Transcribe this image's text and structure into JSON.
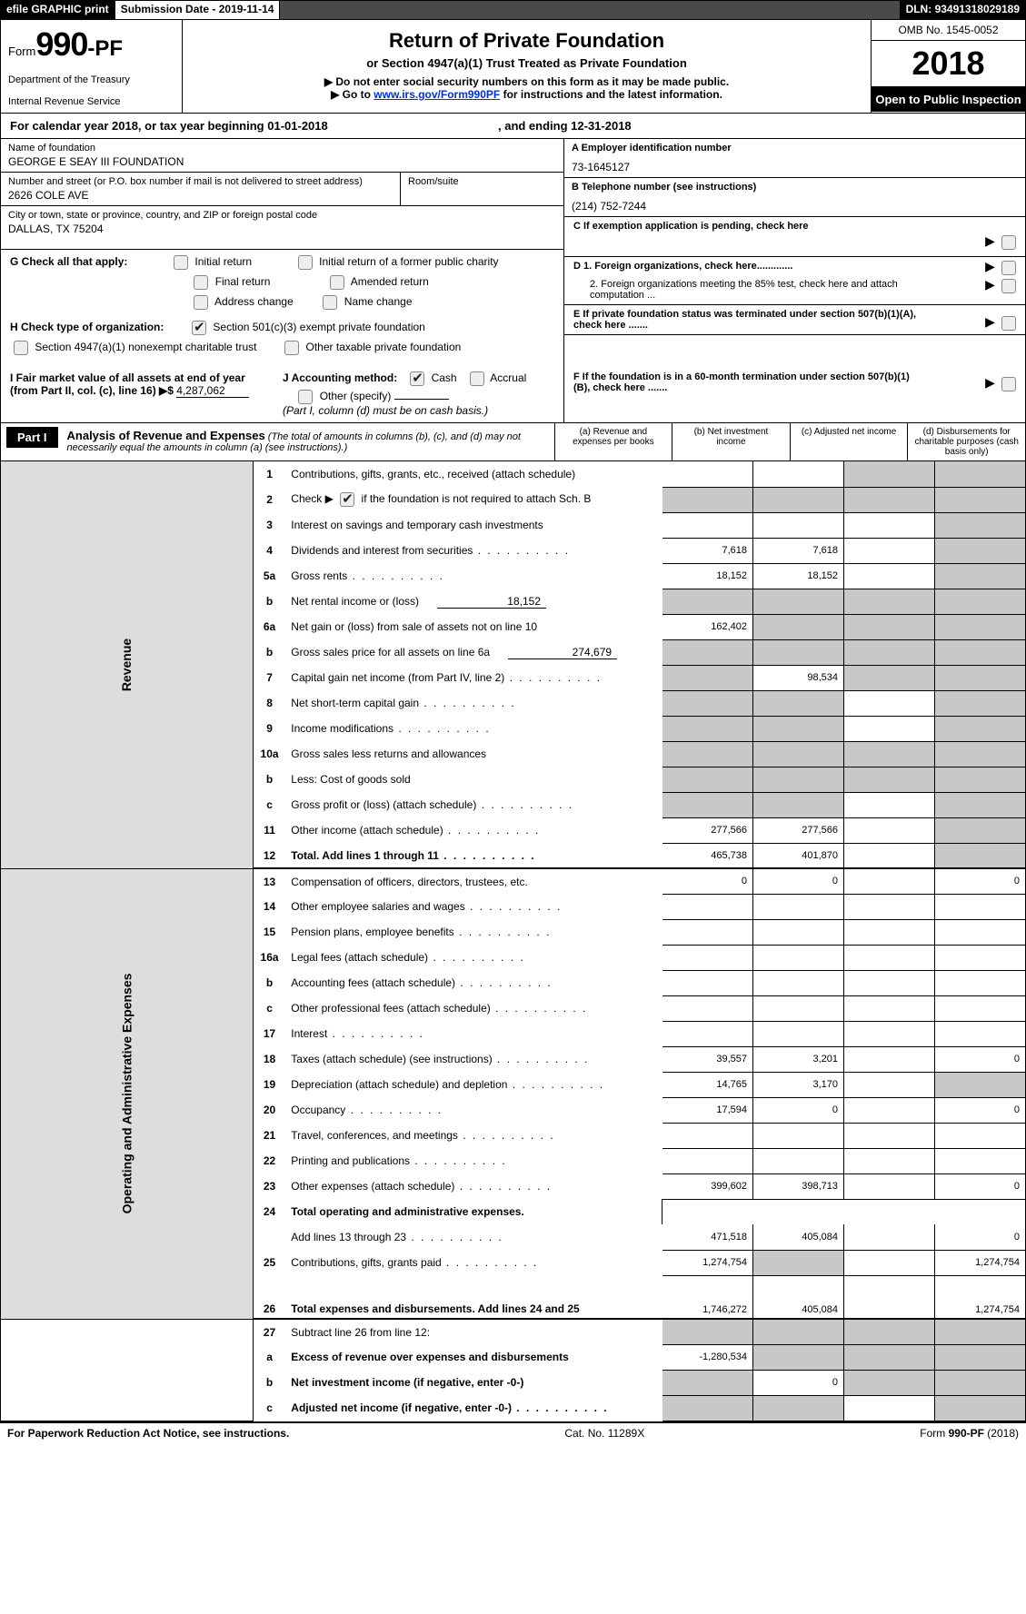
{
  "topbar": {
    "efile": "efile GRAPHIC print",
    "subdate_label": "Submission Date - ",
    "subdate": "2019-11-14",
    "dln_label": "DLN: ",
    "dln": "93491318029189"
  },
  "hdr": {
    "form_word": "Form",
    "form_no": "990-PF",
    "dept1": "Department of the Treasury",
    "dept2": "Internal Revenue Service",
    "title": "Return of Private Foundation",
    "sub1": "or Section 4947(a)(1) Trust Treated as Private Foundation",
    "sub2a": "▶ Do not enter social security numbers on this form as it may be made public.",
    "sub2b_pre": "▶ Go to ",
    "sub2b_link": "www.irs.gov/Form990PF",
    "sub2b_post": " for instructions and the latest information.",
    "omb": "OMB No. 1545-0052",
    "year": "2018",
    "openpub": "Open to Public Inspection"
  },
  "cal": {
    "pre": "For calendar year 2018, or tax year beginning ",
    "begin": "01-01-2018",
    "mid": " , and ending ",
    "end": "12-31-2018"
  },
  "info": {
    "name_lbl": "Name of foundation",
    "name": "GEORGE E SEAY III FOUNDATION",
    "street_lbl": "Number and street (or P.O. box number if mail is not delivered to street address)",
    "street": "2626 COLE AVE",
    "room_lbl": "Room/suite",
    "city_lbl": "City or town, state or province, country, and ZIP or foreign postal code",
    "city": "DALLAS, TX  75204",
    "A_lbl": "A Employer identification number",
    "A_val": "73-1645127",
    "B_lbl": "B Telephone number (see instructions)",
    "B_val": "(214) 752-7244",
    "C_lbl": "C  If exemption application is pending, check here",
    "D1": "D 1. Foreign organizations, check here.............",
    "D2": "2. Foreign organizations meeting the 85% test, check here and attach computation ...",
    "E": "E   If private foundation status was terminated under section 507(b)(1)(A), check here .......",
    "F": "F   If the foundation is in a 60-month termination under section 507(b)(1)(B), check here ......."
  },
  "G": {
    "lbl": "G Check all that apply:",
    "opts": [
      "Initial return",
      "Initial return of a former public charity",
      "Final return",
      "Amended return",
      "Address change",
      "Name change"
    ]
  },
  "H": {
    "lbl": "H Check type of organization:",
    "o1": "Section 501(c)(3) exempt private foundation",
    "o2": "Section 4947(a)(1) nonexempt charitable trust",
    "o3": "Other taxable private foundation"
  },
  "I": {
    "lbl": "I Fair market value of all assets at end of year (from Part II, col. (c), line 16) ▶$ ",
    "val": "4,287,062"
  },
  "J": {
    "lbl": "J Accounting method:",
    "o1": "Cash",
    "o2": "Accrual",
    "o3": "Other (specify)",
    "note": "(Part I, column (d) must be on cash basis.)"
  },
  "part1": {
    "box": "Part I",
    "title": "Analysis of Revenue and Expenses",
    "note": " (The total of amounts in columns (b), (c), and (d) may not necessarily equal the amounts in column (a) (see instructions).)",
    "cols": {
      "a": "(a)    Revenue and expenses per books",
      "b": "(b)    Net investment income",
      "c": "(c)    Adjusted net income",
      "d": "(d)    Disbursements for charitable purposes (cash basis only)"
    }
  },
  "side": {
    "rev": "Revenue",
    "opadm": "Operating and Administrative Expenses"
  },
  "rows": {
    "r1": {
      "n": "1",
      "d": "Contributions, gifts, grants, etc., received (attach schedule)",
      "a": "",
      "b": "",
      "c": "S",
      "dd": "S"
    },
    "r2": {
      "n": "2",
      "d": "Check ▶",
      "d2": " if the foundation is not required to attach Sch. B",
      "a": "S",
      "b": "S",
      "c": "S",
      "dd": "S"
    },
    "r3": {
      "n": "3",
      "d": "Interest on savings and temporary cash investments",
      "a": "",
      "b": "",
      "c": "",
      "dd": "S"
    },
    "r4": {
      "n": "4",
      "d": "Dividends and interest from securities",
      "a": "7,618",
      "b": "7,618",
      "c": "",
      "dd": "S"
    },
    "r5a": {
      "n": "5a",
      "d": "Gross rents",
      "a": "18,152",
      "b": "18,152",
      "c": "",
      "dd": "S"
    },
    "r5b": {
      "n": "b",
      "d": "Net rental income or (loss)",
      "sub": "18,152",
      "a": "S",
      "b": "S",
      "c": "S",
      "dd": "S"
    },
    "r6a": {
      "n": "6a",
      "d": "Net gain or (loss) from sale of assets not on line 10",
      "a": "162,402",
      "b": "S",
      "c": "S",
      "dd": "S"
    },
    "r6b": {
      "n": "b",
      "d": "Gross sales price for all assets on line 6a",
      "sub": "274,679",
      "a": "S",
      "b": "S",
      "c": "S",
      "dd": "S"
    },
    "r7": {
      "n": "7",
      "d": "Capital gain net income (from Part IV, line 2)",
      "a": "S",
      "b": "98,534",
      "c": "S",
      "dd": "S"
    },
    "r8": {
      "n": "8",
      "d": "Net short-term capital gain",
      "a": "S",
      "b": "S",
      "c": "",
      "dd": "S"
    },
    "r9": {
      "n": "9",
      "d": "Income modifications",
      "a": "S",
      "b": "S",
      "c": "",
      "dd": "S"
    },
    "r10a": {
      "n": "10a",
      "d": "Gross sales less returns and allowances",
      "a": "S",
      "b": "S",
      "c": "S",
      "dd": "S"
    },
    "r10b": {
      "n": "b",
      "d": "Less: Cost of goods sold",
      "a": "S",
      "b": "S",
      "c": "S",
      "dd": "S"
    },
    "r10c": {
      "n": "c",
      "d": "Gross profit or (loss) (attach schedule)",
      "a": "S",
      "b": "S",
      "c": "",
      "dd": "S"
    },
    "r11": {
      "n": "11",
      "d": "Other income (attach schedule)",
      "a": "277,566",
      "b": "277,566",
      "c": "",
      "dd": "S"
    },
    "r12": {
      "n": "12",
      "d": "Total. Add lines 1 through 11",
      "a": "465,738",
      "b": "401,870",
      "c": "",
      "dd": "S",
      "bold": true
    },
    "r13": {
      "n": "13",
      "d": "Compensation of officers, directors, trustees, etc.",
      "a": "0",
      "b": "0",
      "c": "",
      "dd": "0"
    },
    "r14": {
      "n": "14",
      "d": "Other employee salaries and wages",
      "a": "",
      "b": "",
      "c": "",
      "dd": ""
    },
    "r15": {
      "n": "15",
      "d": "Pension plans, employee benefits",
      "a": "",
      "b": "",
      "c": "",
      "dd": ""
    },
    "r16a": {
      "n": "16a",
      "d": "Legal fees (attach schedule)",
      "a": "",
      "b": "",
      "c": "",
      "dd": ""
    },
    "r16b": {
      "n": "b",
      "d": "Accounting fees (attach schedule)",
      "a": "",
      "b": "",
      "c": "",
      "dd": ""
    },
    "r16c": {
      "n": "c",
      "d": "Other professional fees (attach schedule)",
      "a": "",
      "b": "",
      "c": "",
      "dd": ""
    },
    "r17": {
      "n": "17",
      "d": "Interest",
      "a": "",
      "b": "",
      "c": "",
      "dd": ""
    },
    "r18": {
      "n": "18",
      "d": "Taxes (attach schedule) (see instructions)",
      "a": "39,557",
      "b": "3,201",
      "c": "",
      "dd": "0"
    },
    "r19": {
      "n": "19",
      "d": "Depreciation (attach schedule) and depletion",
      "a": "14,765",
      "b": "3,170",
      "c": "",
      "dd": "S"
    },
    "r20": {
      "n": "20",
      "d": "Occupancy",
      "a": "17,594",
      "b": "0",
      "c": "",
      "dd": "0"
    },
    "r21": {
      "n": "21",
      "d": "Travel, conferences, and meetings",
      "a": "",
      "b": "",
      "c": "",
      "dd": ""
    },
    "r22": {
      "n": "22",
      "d": "Printing and publications",
      "a": "",
      "b": "",
      "c": "",
      "dd": ""
    },
    "r23": {
      "n": "23",
      "d": "Other expenses (attach schedule)",
      "a": "399,602",
      "b": "398,713",
      "c": "",
      "dd": "0"
    },
    "r24": {
      "n": "24",
      "d": "Total operating and administrative expenses.",
      "bold": true
    },
    "r24b": {
      "n": "",
      "d": "Add lines 13 through 23",
      "a": "471,518",
      "b": "405,084",
      "c": "",
      "dd": "0"
    },
    "r25": {
      "n": "25",
      "d": "Contributions, gifts, grants paid",
      "a": "1,274,754",
      "b": "S",
      "c": "",
      "dd": "1,274,754"
    },
    "r26": {
      "n": "26",
      "d": "Total expenses and disbursements. Add lines 24 and 25",
      "a": "1,746,272",
      "b": "405,084",
      "c": "",
      "dd": "1,274,754",
      "bold": true,
      "tall": true
    },
    "r27": {
      "n": "27",
      "d": "Subtract line 26 from line 12:",
      "a": "S",
      "b": "S",
      "c": "S",
      "dd": "S"
    },
    "r27a": {
      "n": "a",
      "d": "Excess of revenue over expenses and disbursements",
      "a": "-1,280,534",
      "b": "S",
      "c": "S",
      "dd": "S",
      "bold": true
    },
    "r27b": {
      "n": "b",
      "d": "Net investment income (if negative, enter -0-)",
      "a": "S",
      "b": "0",
      "c": "S",
      "dd": "S",
      "bold": true
    },
    "r27c": {
      "n": "c",
      "d": "Adjusted net income (if negative, enter -0-)",
      "a": "S",
      "b": "S",
      "c": "",
      "dd": "S",
      "bold": true
    }
  },
  "footer": {
    "left": "For Paperwork Reduction Act Notice, see instructions.",
    "mid": "Cat. No. 11289X",
    "right_pre": "Form ",
    "right_b": "990-PF",
    "right_post": " (2018)"
  }
}
